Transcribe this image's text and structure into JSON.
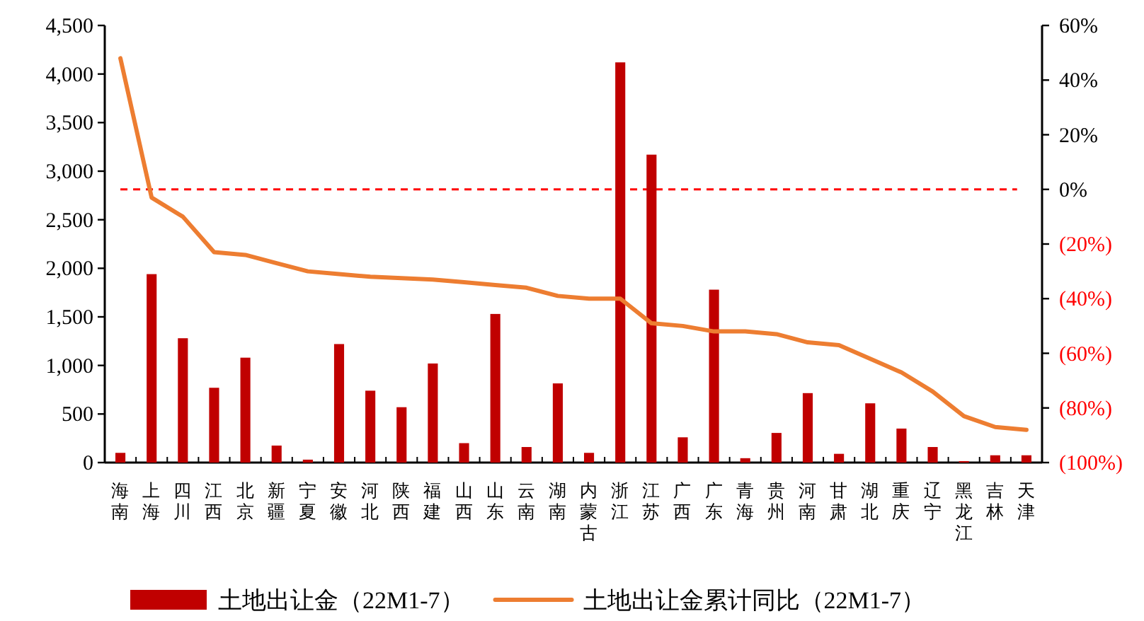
{
  "chart_data": {
    "type": "bar",
    "categories": [
      "海南",
      "上海",
      "四川",
      "江西",
      "北京",
      "新疆",
      "宁夏",
      "安徽",
      "河北",
      "陕西",
      "福建",
      "山西",
      "山东",
      "云南",
      "湖南",
      "内蒙古",
      "浙江",
      "江苏",
      "广西",
      "广东",
      "青海",
      "贵州",
      "河南",
      "甘肃",
      "湖北",
      "重庆",
      "辽宁",
      "黑龙江",
      "吉林",
      "天津"
    ],
    "series": [
      {
        "name": "土地出让金（22M1-7）",
        "color": "#c00000",
        "values": [
          100,
          1940,
          1280,
          770,
          1080,
          175,
          30,
          1220,
          740,
          570,
          1020,
          200,
          1530,
          160,
          815,
          100,
          4120,
          3170,
          260,
          1780,
          45,
          305,
          715,
          90,
          610,
          350,
          160,
          15,
          75,
          75
        ]
      },
      {
        "name": "土地出让金累计同比（22M1-7）",
        "type": "line",
        "axis": "y2",
        "color": "#ed7d31",
        "values": [
          48,
          -3,
          -10,
          -23,
          -24,
          -27,
          -30,
          -31,
          -32,
          -32.5,
          -33,
          -34,
          -35,
          -36,
          -39,
          -40,
          -40,
          -49,
          -50,
          -52,
          -52,
          -53,
          -56,
          -57,
          -62,
          -67,
          -74,
          -83,
          -87,
          -88
        ]
      }
    ],
    "ylim": [
      0,
      4500
    ],
    "yticks": [
      0,
      {
        "value": 500,
        "label": "500"
      },
      {
        "value": 1000,
        "label": "1,000"
      },
      {
        "value": 1500,
        "label": "1,500"
      },
      {
        "value": 2000,
        "label": "2,000"
      },
      {
        "value": 2500,
        "label": "2,500"
      },
      {
        "value": 3000,
        "label": "3,000"
      },
      {
        "value": 3500,
        "label": "3,500"
      },
      {
        "value": 4000,
        "label": "4,000"
      },
      {
        "value": 4500,
        "label": "4,500"
      }
    ],
    "y2lim": [
      -100,
      60
    ],
    "y2ticks": [
      {
        "value": -100,
        "label": "(100%)"
      },
      {
        "value": -80,
        "label": "(80%)"
      },
      {
        "value": -60,
        "label": "(60%)"
      },
      {
        "value": -40,
        "label": "(40%)"
      },
      {
        "value": -20,
        "label": "(20%)"
      },
      {
        "value": 0,
        "label": "0%"
      },
      {
        "value": 20,
        "label": "20%"
      },
      {
        "value": 40,
        "label": "40%"
      },
      {
        "value": 60,
        "label": "60%"
      }
    ],
    "ref_lines": [
      {
        "axis": "y2",
        "value": 0,
        "color": "#ff0000",
        "line_style": "dashed"
      }
    ],
    "legend": "bottom",
    "grid": false,
    "marker": "none"
  }
}
